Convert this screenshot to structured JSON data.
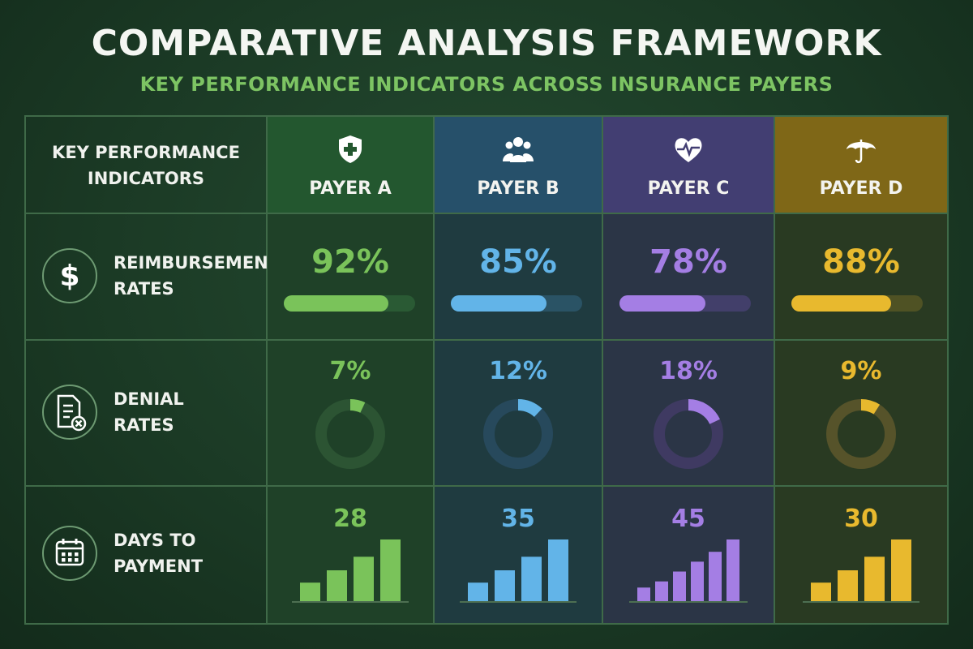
{
  "header": {
    "title": "COMPARATIVE ANALYSIS FRAMEWORK",
    "subtitle": "KEY PERFORMANCE INDICATORS ACROSS INSURANCE PAYERS"
  },
  "kpi_header": [
    "KEY PERFORMANCE",
    "INDICATORS"
  ],
  "payers": [
    {
      "name": "PAYER A",
      "icon": "shield-plus-icon",
      "color": "#7ac35a",
      "header_bg": "#23572f",
      "cell_bg": "#1f4128",
      "track": "#2a5a34",
      "ring_track": "#2c5433"
    },
    {
      "name": "PAYER B",
      "icon": "people-group-icon",
      "color": "#62b4e8",
      "header_bg": "#26506a",
      "cell_bg": "#1f3b40",
      "track": "#2a5365",
      "ring_track": "#27495c"
    },
    {
      "name": "PAYER C",
      "icon": "heart-pulse-icon",
      "color": "#a47ee4",
      "header_bg": "#423e72",
      "cell_bg": "#2b3546",
      "track": "#423f6a",
      "ring_track": "#3f3a62"
    },
    {
      "name": "PAYER D",
      "icon": "umbrella-icon",
      "color": "#e8b92e",
      "header_bg": "#7f6717",
      "cell_bg": "#293a22",
      "track": "#4f5224",
      "ring_track": "#56532a"
    }
  ],
  "rows": [
    {
      "icon": "dollar-icon",
      "label": [
        "REIMBURSEMENT",
        "RATES"
      ]
    },
    {
      "icon": "document-denied-icon",
      "label": [
        "DENIAL",
        "RATES"
      ]
    },
    {
      "icon": "calendar-icon",
      "label": [
        "DAYS TO",
        "PAYMENT"
      ]
    }
  ],
  "chart_data": {
    "type": "table",
    "title": "COMPARATIVE ANALYSIS FRAMEWORK",
    "subtitle": "KEY PERFORMANCE INDICATORS ACROSS INSURANCE PAYERS",
    "categories": [
      "PAYER A",
      "PAYER B",
      "PAYER C",
      "PAYER D"
    ],
    "series": [
      {
        "name": "REIMBURSEMENT RATES",
        "values": [
          92,
          85,
          78,
          88
        ],
        "labels": [
          "92%",
          "85%",
          "78%",
          "88%"
        ]
      },
      {
        "name": "DENIAL RATES",
        "values": [
          7,
          12,
          18,
          9
        ],
        "labels": [
          "7%",
          "12%",
          "18%",
          "9%"
        ]
      },
      {
        "name": "DAYS TO PAYMENT",
        "values": [
          28,
          35,
          45,
          30
        ],
        "labels": [
          "28",
          "35",
          "45",
          "30"
        ]
      }
    ]
  }
}
